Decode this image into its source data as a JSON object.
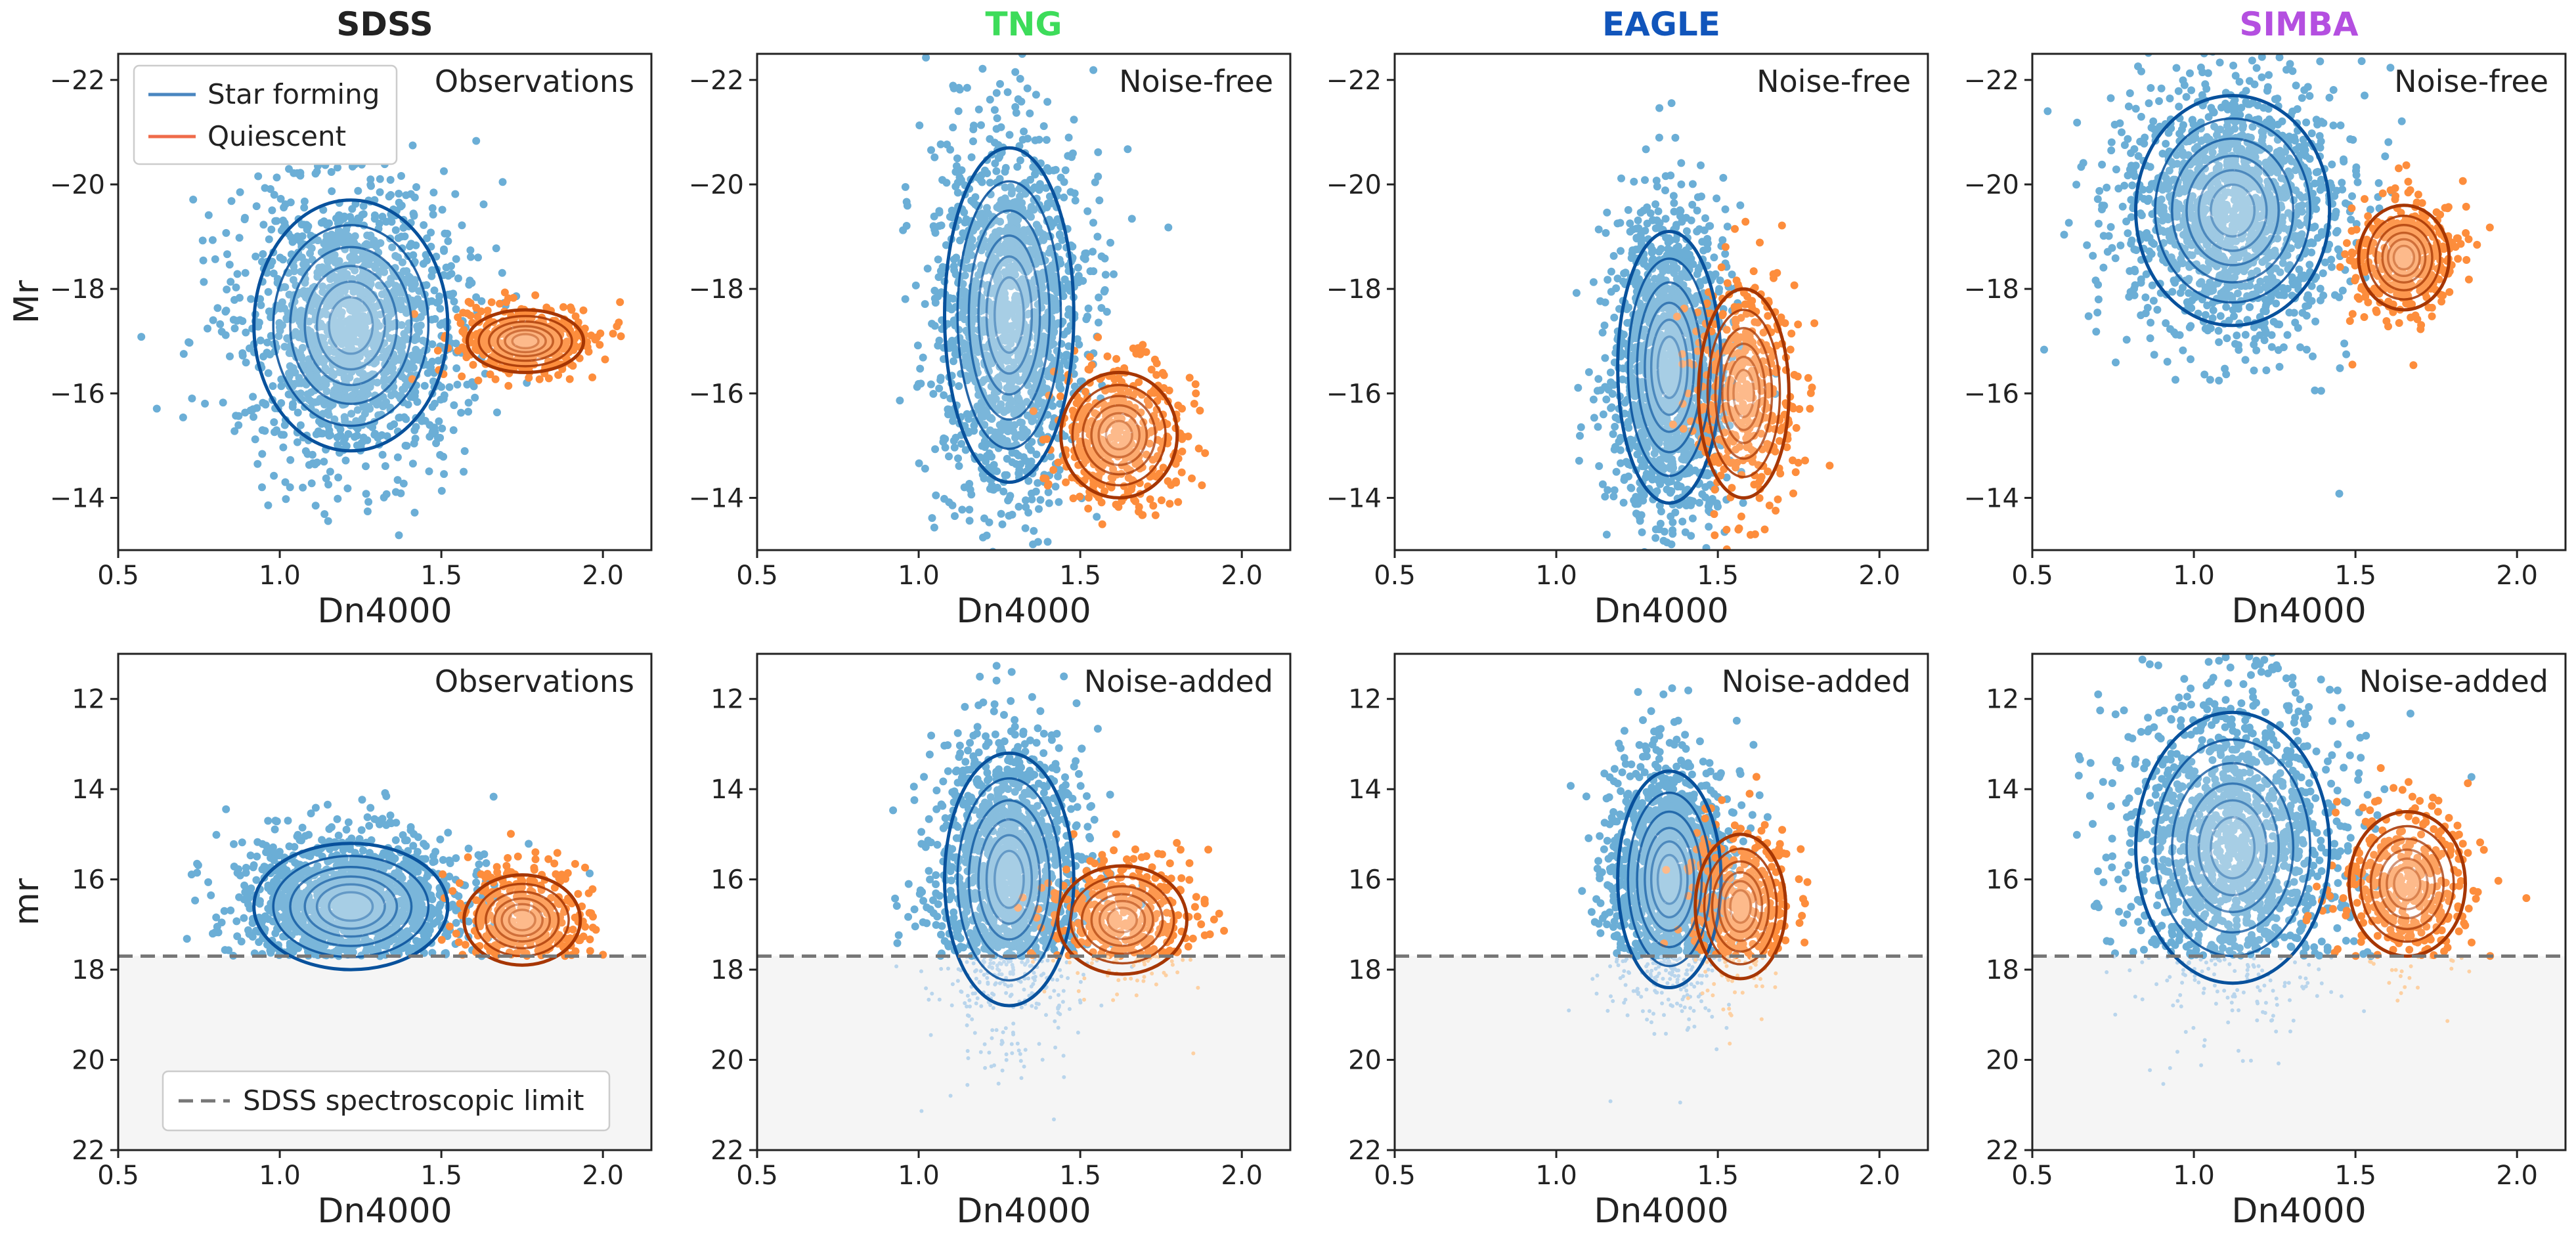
{
  "chart_data": {
    "type": "scatter",
    "layout": "2x4 grid",
    "x_axis": {
      "label": "Dn4000",
      "xlim": [
        0.5,
        2.15
      ],
      "ticks": [
        "0.5",
        "1.0",
        "1.5",
        "2.0"
      ],
      "tick_values": [
        0.5,
        1.0,
        1.5,
        2.0
      ]
    },
    "columns": [
      {
        "title": "SDSS",
        "color": "#222222"
      },
      {
        "title": "TNG",
        "color": "#3ddc5a"
      },
      {
        "title": "EAGLE",
        "color": "#1155bb"
      },
      {
        "title": "SIMBA",
        "color": "#b44fe0"
      }
    ],
    "rows": [
      {
        "ylabel": "Mr",
        "ylim": [
          -13,
          -22.5
        ],
        "ticks": [
          "−22",
          "−20",
          "−18",
          "−16",
          "−14"
        ],
        "tick_values": [
          -22,
          -20,
          -18,
          -16,
          -14
        ],
        "panels": [
          {
            "annotation": "Observations",
            "sf": {
              "x": 1.22,
              "y": -17.3,
              "sx": 0.15,
              "sy": 1.2
            },
            "q": {
              "x": 1.76,
              "y": -17.0,
              "sx": 0.09,
              "sy": 0.3
            }
          },
          {
            "annotation": "Noise-free",
            "sf": {
              "x": 1.28,
              "y": -17.5,
              "sx": 0.1,
              "sy": 1.6
            },
            "q": {
              "x": 1.62,
              "y": -15.2,
              "sx": 0.09,
              "sy": 0.6
            }
          },
          {
            "annotation": "Noise-free",
            "sf": {
              "x": 1.35,
              "y": -16.5,
              "sx": 0.08,
              "sy": 1.3
            },
            "q": {
              "x": 1.58,
              "y": -16.0,
              "sx": 0.07,
              "sy": 1.0
            }
          },
          {
            "annotation": "Noise-free",
            "sf": {
              "x": 1.12,
              "y": -19.5,
              "sx": 0.15,
              "sy": 1.1
            },
            "q": {
              "x": 1.65,
              "y": -18.6,
              "sx": 0.07,
              "sy": 0.5
            }
          }
        ]
      },
      {
        "ylabel": "mr",
        "ylim": [
          22,
          11
        ],
        "ticks": [
          "12",
          "14",
          "16",
          "18",
          "20",
          "22"
        ],
        "tick_values": [
          12,
          14,
          16,
          18,
          20,
          22
        ],
        "spectroscopic_limit": 17.7,
        "panels": [
          {
            "annotation": "Observations",
            "sf": {
              "x": 1.22,
              "y": 16.6,
              "sx": 0.15,
              "sy": 0.7
            },
            "q": {
              "x": 1.75,
              "y": 16.9,
              "sx": 0.09,
              "sy": 0.5
            }
          },
          {
            "annotation": "Noise-added",
            "sf": {
              "x": 1.28,
              "y": 16.0,
              "sx": 0.1,
              "sy": 1.4
            },
            "q": {
              "x": 1.63,
              "y": 16.9,
              "sx": 0.1,
              "sy": 0.6
            }
          },
          {
            "annotation": "Noise-added",
            "sf": {
              "x": 1.35,
              "y": 16.0,
              "sx": 0.08,
              "sy": 1.2
            },
            "q": {
              "x": 1.57,
              "y": 16.6,
              "sx": 0.07,
              "sy": 0.8
            }
          },
          {
            "annotation": "Noise-added",
            "sf": {
              "x": 1.12,
              "y": 15.3,
              "sx": 0.15,
              "sy": 1.5
            },
            "q": {
              "x": 1.66,
              "y": 16.1,
              "sx": 0.09,
              "sy": 0.8
            }
          }
        ]
      }
    ],
    "legend_top": [
      {
        "label": "Star forming",
        "color": "#4a86c0"
      },
      {
        "label": "Quiescent",
        "color": "#ef6b4a"
      }
    ],
    "legend_bottom": {
      "label": "SDSS spectroscopic limit",
      "color": "#777777"
    },
    "colors": {
      "sf_points": "#6baed6",
      "q_points": "#fd8d3c",
      "sf_faint": "#b9d5ec",
      "q_faint": "#fdd0a2",
      "sf_contour": "#08519c",
      "q_contour": "#a63603"
    }
  }
}
